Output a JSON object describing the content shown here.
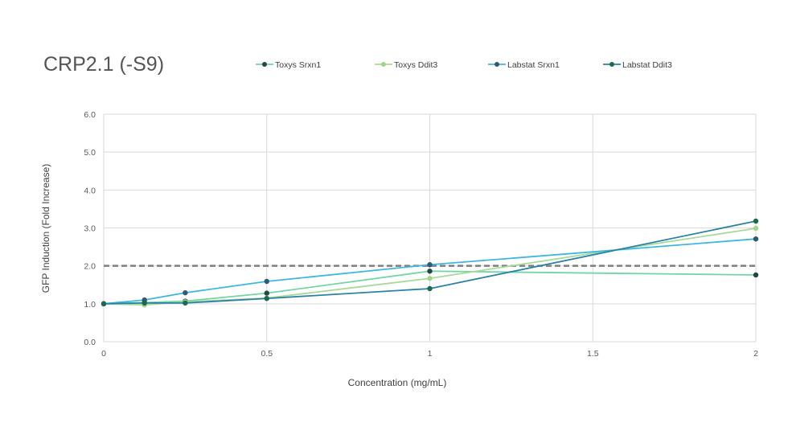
{
  "chart_data": {
    "type": "line",
    "title": "CRP2.1 (-S9)",
    "xlabel": "Concentration (mg/mL)",
    "ylabel": "GFP Induction (Fold Increase)",
    "xlim": [
      0,
      2
    ],
    "ylim": [
      0,
      6
    ],
    "x_ticks": [
      "0",
      "0.5",
      "1",
      "1.5",
      "2"
    ],
    "y_ticks": [
      "0.0",
      "1.0",
      "2.0",
      "3.0",
      "4.0",
      "5.0",
      "6.0"
    ],
    "grid": true,
    "legend_position": "top",
    "reference_line": {
      "y": 2.0,
      "style": "dashed",
      "color": "#7f7f7f"
    },
    "x": [
      0,
      0.125,
      0.25,
      0.5,
      1,
      2
    ],
    "series": [
      {
        "name": "Toxys Srxn1",
        "values": [
          1.0,
          1.03,
          1.07,
          1.28,
          1.86,
          1.76
        ],
        "line_color": "#72d6a6",
        "marker_color": "#1f4a44"
      },
      {
        "name": "Toxys Ddit3",
        "values": [
          1.0,
          0.97,
          1.05,
          1.15,
          1.67,
          2.99
        ],
        "line_color": "#a9d99b",
        "marker_color": "#9fd68c"
      },
      {
        "name": "Labstat Srxn1",
        "values": [
          1.0,
          1.1,
          1.29,
          1.59,
          2.03,
          2.71
        ],
        "line_color": "#3db8e2",
        "marker_color": "#2e5a76"
      },
      {
        "name": "Labstat Ddit3",
        "values": [
          1.0,
          1.02,
          1.02,
          1.14,
          1.4,
          3.18
        ],
        "line_color": "#2a82a6",
        "marker_color": "#1a6b4c"
      }
    ]
  }
}
